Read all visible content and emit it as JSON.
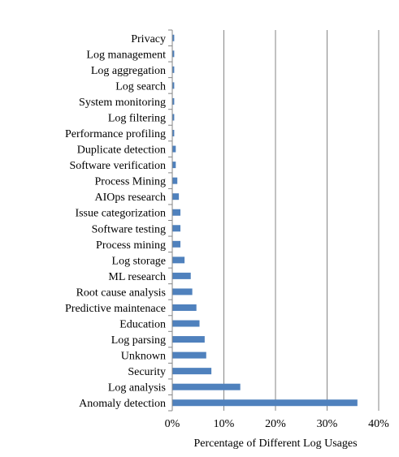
{
  "chart_data": {
    "type": "bar",
    "orientation": "horizontal",
    "categories": [
      "Privacy",
      "Log management",
      "Log aggregation",
      "Log search",
      "System monitoring",
      "Log filtering",
      "Performance profiling",
      "Duplicate detection",
      "Software verification",
      "Process Mining",
      "AIOps research",
      "Issue categorization",
      "Software testing",
      "Process mining",
      "Log storage",
      "ML research",
      "Root cause analysis",
      "Predictive maintenace",
      "Education",
      "Log parsing",
      "Unknown",
      "Security",
      "Log analysis",
      "Anomaly detection"
    ],
    "values": [
      0.3,
      0.3,
      0.3,
      0.3,
      0.3,
      0.3,
      0.3,
      0.6,
      0.6,
      0.9,
      1.2,
      1.5,
      1.5,
      1.5,
      2.3,
      3.5,
      3.8,
      4.6,
      5.2,
      6.2,
      6.5,
      7.5,
      13.1,
      35.8
    ],
    "xlabel": "Percentage of Different Log Usages",
    "ylabel": "",
    "title": "",
    "xlim": [
      0,
      40
    ],
    "xticks": [
      "0%",
      "10%",
      "20%",
      "30%",
      "40%"
    ],
    "xtick_values": [
      0,
      10,
      20,
      30,
      40
    ],
    "grid": "vertical",
    "legend": "none",
    "colors": {
      "bar": "#4f81bd",
      "grid": "#868686",
      "axis": "#868686"
    }
  }
}
